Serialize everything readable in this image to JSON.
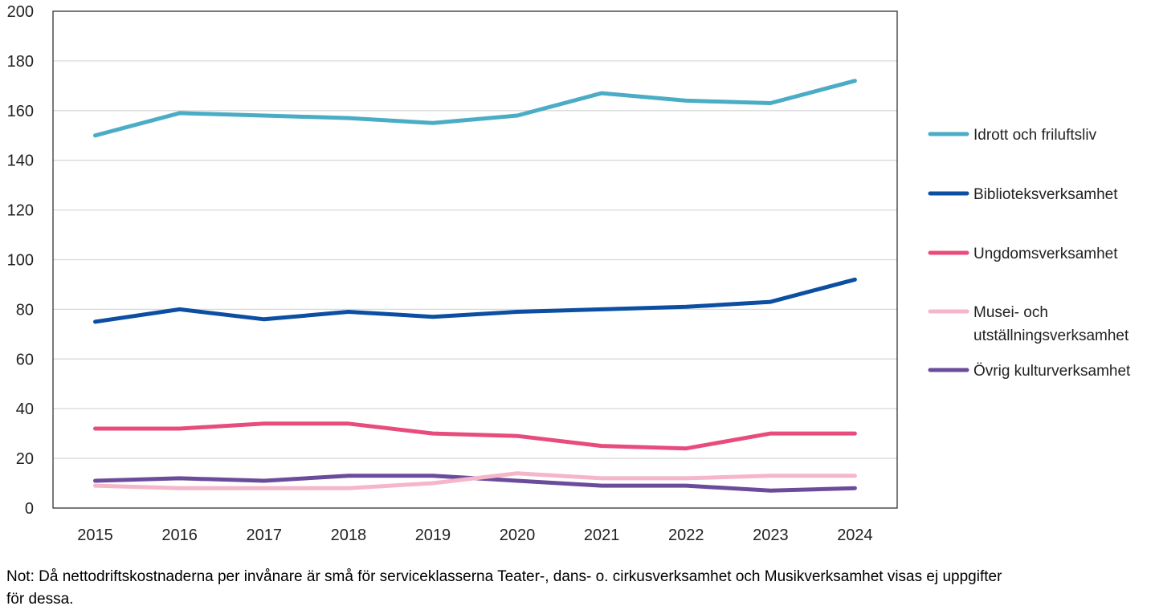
{
  "chart_data": {
    "type": "line",
    "title": "",
    "xlabel": "",
    "ylabel": "",
    "x": [
      "2015",
      "2016",
      "2017",
      "2018",
      "2019",
      "2020",
      "2021",
      "2022",
      "2023",
      "2024"
    ],
    "ylim": [
      0,
      200
    ],
    "yticks": [
      0,
      20,
      40,
      60,
      80,
      100,
      120,
      140,
      160,
      180,
      200
    ],
    "grid": "horizontal",
    "legend_position": "right",
    "series": [
      {
        "name": "Idrott och friluftsliv",
        "color": "#4BACC6",
        "values": [
          150,
          159,
          158,
          157,
          155,
          158,
          167,
          164,
          163,
          172
        ]
      },
      {
        "name": "Biblioteksverksamhet",
        "color": "#0B4EA2",
        "values": [
          75,
          80,
          76,
          79,
          77,
          79,
          80,
          81,
          83,
          92
        ]
      },
      {
        "name": "Ungdomsverksamhet",
        "color": "#E84C7D",
        "values": [
          32,
          32,
          34,
          34,
          30,
          29,
          25,
          24,
          30,
          30
        ]
      },
      {
        "name": "Musei- och utställningsverksamhet",
        "color": "#F4B6C8",
        "values": [
          9,
          8,
          8,
          8,
          10,
          14,
          12,
          12,
          13,
          13
        ]
      },
      {
        "name": "Övrig kulturverksamhet",
        "color": "#6B4C9A",
        "values": [
          11,
          12,
          11,
          13,
          13,
          11,
          9,
          9,
          7,
          8
        ]
      }
    ]
  },
  "note": "Not: Då nettodriftskostnaderna per invånare är små för serviceklasserna Teater-, dans- o. cirkusverksamhet och Musikverksamhet visas ej uppgifter för dessa."
}
